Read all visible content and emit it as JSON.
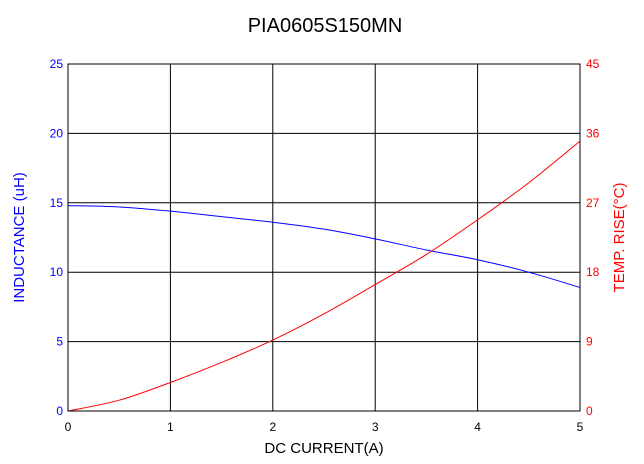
{
  "chart_data": {
    "type": "line",
    "title": "PIA0605S150MN",
    "xlabel": "DC CURRENT(A)",
    "ylabel_left": "INDUCTANCE (uH)",
    "ylabel_right": "TEMP. RISE(°C)",
    "xlim": [
      0,
      5
    ],
    "ylim_left": [
      0,
      25
    ],
    "ylim_right": [
      0,
      45
    ],
    "x_ticks": [
      "0",
      "1",
      "2",
      "3",
      "4",
      "5"
    ],
    "y_left_ticks": [
      "0",
      "5",
      "10",
      "15",
      "20",
      "25"
    ],
    "y_right_ticks": [
      "0",
      "9",
      "18",
      "27",
      "36",
      "45"
    ],
    "grid": true,
    "legend": "none",
    "series": [
      {
        "axis": "left",
        "color": "#0000ff",
        "x": [
          0,
          0.5,
          1,
          1.5,
          2,
          2.5,
          3,
          3.5,
          4,
          4.5,
          5
        ],
        "y": [
          14.8,
          14.7,
          14.4,
          14.0,
          13.6,
          13.1,
          12.4,
          11.6,
          10.9,
          10.0,
          8.9
        ]
      },
      {
        "axis": "right",
        "color": "#ff0000",
        "x": [
          0,
          0.5,
          1,
          1.5,
          2,
          2.5,
          3,
          3.5,
          4,
          4.5,
          5
        ],
        "y": [
          0,
          1.4,
          3.7,
          6.3,
          9.2,
          12.6,
          16.4,
          20.3,
          24.8,
          29.6,
          35.0
        ]
      }
    ]
  }
}
